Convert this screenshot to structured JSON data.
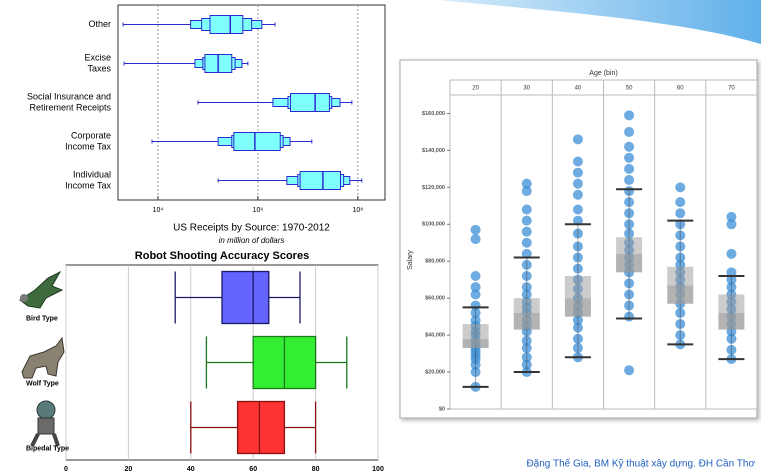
{
  "chart_data": [
    {
      "type": "letter-value",
      "categories": [
        [
          "Other"
        ],
        [
          "Excise",
          "Taxes"
        ],
        [
          "Social Insurance and",
          "Retirement Receipts"
        ],
        [
          "Corporate",
          "Income Tax"
        ],
        [
          "Individual",
          "Income Tax"
        ]
      ],
      "min": [
        2000,
        2100,
        63000,
        7600,
        160000
      ],
      "max": [
        2200000,
        630000,
        76000000,
        12000000,
        120000000
      ],
      "median": [
        280000,
        160000,
        14000000,
        870000,
        20000000
      ],
      "boxes": [
        [
          [
            45000,
            1200000
          ],
          [
            75000,
            750000
          ],
          [
            110000,
            500000
          ]
        ],
        [
          [
            55000,
            480000
          ],
          [
            79000,
            350000
          ],
          [
            87000,
            300000
          ]
        ],
        [
          [
            2000000,
            44000000
          ],
          [
            4000000,
            30000000
          ],
          [
            4500000,
            27000000
          ]
        ],
        [
          [
            160000,
            4400000
          ],
          [
            300000,
            3200000
          ],
          [
            330000,
            2800000
          ]
        ],
        [
          [
            3800000,
            69000000
          ],
          [
            6300000,
            52000000
          ],
          [
            7000000,
            45000000
          ]
        ]
      ],
      "x_label": "US Receipts by Source: 1970-2012",
      "x_sublabel": "in million of dollars",
      "xlim": [
        1585,
        350000000
      ],
      "xscale": "log",
      "xticks": [
        {
          "value": 10000,
          "label": "10⁴"
        },
        {
          "value": 1000000,
          "label": "10⁶"
        },
        {
          "value": 100000000,
          "label": "10⁸"
        }
      ],
      "grid": true,
      "fill": "#80ffff",
      "color": "#2b2bd0"
    },
    {
      "type": "box",
      "title": "Robot Shooting Accuracy Scores",
      "categories": [
        "Bird Type",
        "Wolf Type",
        "Bipedal Type"
      ],
      "whislo": [
        35,
        45,
        40
      ],
      "q1": [
        50,
        60,
        55
      ],
      "med": [
        60,
        70,
        62
      ],
      "q3": [
        65,
        80,
        70
      ],
      "whishi": [
        75,
        90,
        80
      ],
      "colors": [
        "#6464ff",
        "#33ee33",
        "#ff3333"
      ],
      "edge_colors": [
        "#1a1a66",
        "#1a7a1a",
        "#8a1010"
      ],
      "xlim": [
        0,
        100
      ],
      "xticks": [
        0,
        20,
        40,
        60,
        80,
        100
      ],
      "grid": true
    },
    {
      "type": "box-strip",
      "title": "Age (bin)",
      "y_label": "Salary",
      "categories": [
        "20",
        "30",
        "40",
        "50",
        "60",
        "70"
      ],
      "whislo": [
        12000,
        20000,
        28000,
        49000,
        35000,
        27000
      ],
      "q1": [
        33000,
        43000,
        50000,
        74000,
        57000,
        43000
      ],
      "med": [
        38000,
        52000,
        60000,
        84000,
        67000,
        52000
      ],
      "q3": [
        46000,
        60000,
        72000,
        93000,
        77000,
        62000
      ],
      "whishi": [
        55000,
        82000,
        100000,
        119000,
        102000,
        72000
      ],
      "points": [
        [
          12000,
          20000,
          24000,
          27000,
          29000,
          31000,
          33000,
          35000,
          37000,
          40000,
          42000,
          45000,
          48000,
          52000,
          56000,
          62000,
          66000,
          72000,
          92000,
          97000
        ],
        [
          20000,
          24000,
          28000,
          33000,
          37000,
          42000,
          45000,
          48000,
          52000,
          55000,
          58000,
          62000,
          66000,
          72000,
          78000,
          84000,
          90000,
          96000,
          102000,
          108000,
          118000,
          122000
        ],
        [
          28000,
          33000,
          38000,
          44000,
          48000,
          52000,
          56000,
          60000,
          65000,
          70000,
          76000,
          82000,
          88000,
          95000,
          102000,
          108000,
          116000,
          122000,
          128000,
          134000,
          146000
        ],
        [
          21000,
          50000,
          56000,
          62000,
          68000,
          74000,
          78000,
          82000,
          86000,
          90000,
          95000,
          100000,
          106000,
          112000,
          118000,
          124000,
          130000,
          136000,
          142000,
          150000,
          159000
        ],
        [
          35000,
          40000,
          46000,
          52000,
          57000,
          62000,
          66000,
          70000,
          74000,
          78000,
          82000,
          88000,
          94000,
          100000,
          106000,
          112000,
          120000
        ],
        [
          27000,
          32000,
          38000,
          42000,
          46000,
          50000,
          54000,
          58000,
          62000,
          66000,
          70000,
          74000,
          84000,
          100000,
          104000
        ]
      ],
      "point_color": "#3d8fd6",
      "box_color": "#9a9a9a",
      "whisker_color": "#333333",
      "ylim": [
        0,
        170000
      ],
      "yticks": [
        {
          "value": 0,
          "label": "$0"
        },
        {
          "value": 20000,
          "label": "$20,000"
        },
        {
          "value": 40000,
          "label": "$40,000"
        },
        {
          "value": 60000,
          "label": "$60,000"
        },
        {
          "value": 80000,
          "label": "$80,000"
        },
        {
          "value": 100000,
          "label": "$100,000"
        },
        {
          "value": 120000,
          "label": "$120,000"
        },
        {
          "value": 140000,
          "label": "$140,000"
        },
        {
          "value": 160000,
          "label": "$160,000"
        }
      ],
      "grid": false
    }
  ],
  "footer": "Đặng Thế Gia, BM Kỹ thuật xây dựng. ĐH Cần Thơ"
}
